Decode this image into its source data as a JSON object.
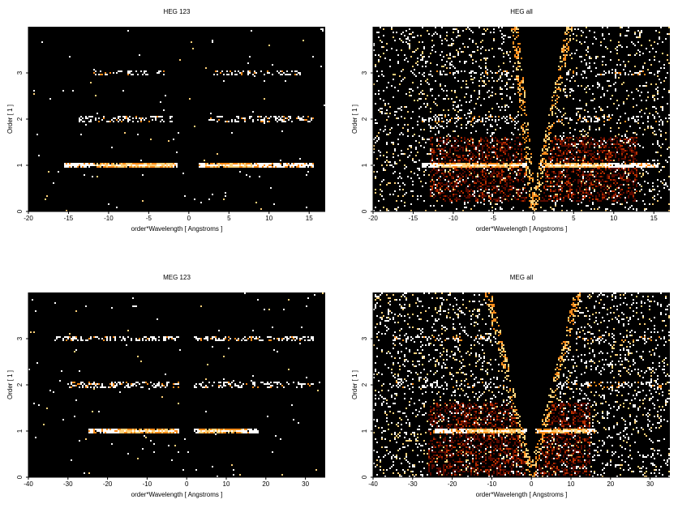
{
  "chart_data": [
    {
      "type": "heatmap",
      "title": "HEG 123",
      "xlabel": "order*Wavelength [ Angstroms ]",
      "ylabel": "Order [ 1 ]",
      "xlim": [
        -20,
        17
      ],
      "ylim": [
        0,
        4
      ],
      "xticks": [
        "-20",
        "-15",
        "-10",
        "-5",
        "0",
        "5",
        "10",
        "15"
      ],
      "yticks": [
        "0",
        "1",
        "2",
        "3"
      ],
      "colormap": [
        "#000000",
        "#5a0a00",
        "#b82e00",
        "#ff8c1a",
        "#ffd27a",
        "#ffffff"
      ],
      "bands": [
        {
          "order": 1,
          "x_ranges": [
            [
              -15.5,
              -1.5
            ],
            [
              1.2,
              15.5
            ]
          ],
          "peak_ranges": [
            [
              -12,
              -2
            ],
            [
              2,
              8
            ]
          ],
          "density": 0.9
        },
        {
          "order": 2,
          "x_ranges": [
            [
              -14,
              -2
            ],
            [
              2.5,
              15.5
            ]
          ],
          "density": 0.35
        },
        {
          "order": 3,
          "x_ranges": [
            [
              -12,
              -3
            ],
            [
              3,
              14
            ]
          ],
          "density": 0.3
        }
      ],
      "background_density": 0.005,
      "wedge": false
    },
    {
      "type": "heatmap",
      "title": "HEG all",
      "xlabel": "order*Wavelength [ Angstroms ]",
      "ylabel": "Order [ 1 ]",
      "xlim": [
        -20,
        17
      ],
      "ylim": [
        0,
        4
      ],
      "xticks": [
        "-20",
        "-15",
        "-10",
        "-5",
        "0",
        "5",
        "10",
        "15"
      ],
      "yticks": [
        "0",
        "1",
        "2",
        "3"
      ],
      "colormap": [
        "#000000",
        "#5a0a00",
        "#b82e00",
        "#ff8c1a",
        "#ffd27a",
        "#ffffff"
      ],
      "bands": [
        {
          "order": 1,
          "x_ranges": [
            [
              -14,
              -0.8
            ],
            [
              0.8,
              15.5
            ]
          ],
          "peak_ranges": [
            [
              -12,
              -1.5
            ],
            [
              1.5,
              9
            ]
          ],
          "density": 0.9
        },
        {
          "order": 2,
          "x_ranges": [
            [
              -14,
              -1
            ],
            [
              1,
              16
            ]
          ],
          "density": 0.3
        },
        {
          "order": 3,
          "x_ranges": [
            [
              -14,
              -1
            ],
            [
              1,
              16
            ]
          ],
          "density": 0.25
        }
      ],
      "background_density": 0.1,
      "wedge": true,
      "wedge_slope_left": -2.6,
      "wedge_slope_right": 5.0,
      "warm_box": [
        [
          -13,
          13
        ],
        [
          0.2,
          1.6
        ]
      ]
    },
    {
      "type": "heatmap",
      "title": "MEG 123",
      "xlabel": "order*Wavelength [ Angstroms ]",
      "ylabel": "Order [ 1 ]",
      "xlim": [
        -40,
        35
      ],
      "ylim": [
        0,
        4
      ],
      "xticks": [
        "-40",
        "-30",
        "-20",
        "-10",
        "0",
        "10",
        "20",
        "30"
      ],
      "yticks": [
        "0",
        "1",
        "2",
        "3"
      ],
      "colormap": [
        "#000000",
        "#5a0a00",
        "#b82e00",
        "#ff8c1a",
        "#ffd27a",
        "#ffffff"
      ],
      "bands": [
        {
          "order": 1,
          "x_ranges": [
            [
              -25,
              -2
            ],
            [
              2,
              18
            ]
          ],
          "peak_ranges": [
            [
              -17,
              -3
            ],
            [
              3,
              14
            ]
          ],
          "density": 0.9
        },
        {
          "order": 2,
          "x_ranges": [
            [
              -30,
              -2
            ],
            [
              2,
              32
            ]
          ],
          "density": 0.35
        },
        {
          "order": 3,
          "x_ranges": [
            [
              -34,
              -2
            ],
            [
              2,
              32
            ]
          ],
          "density": 0.4
        }
      ],
      "background_density": 0.005,
      "wedge": false
    },
    {
      "type": "heatmap",
      "title": "MEG all",
      "xlabel": "order*Wavelength [ Angstroms ]",
      "ylabel": "Order [ 1 ]",
      "xlim": [
        -40,
        35
      ],
      "ylim": [
        0,
        4
      ],
      "xticks": [
        "-40",
        "-30",
        "-20",
        "-10",
        "0",
        "10",
        "20",
        "30"
      ],
      "yticks": [
        "0",
        "1",
        "2",
        "3"
      ],
      "colormap": [
        "#000000",
        "#5a0a00",
        "#b82e00",
        "#ff8c1a",
        "#ffd27a",
        "#ffffff"
      ],
      "bands": [
        {
          "order": 1,
          "x_ranges": [
            [
              -25,
              -1
            ],
            [
              1,
              16
            ]
          ],
          "peak_ranges": [
            [
              -16,
              -2
            ],
            [
              2,
              14
            ]
          ],
          "density": 0.9
        },
        {
          "order": 2,
          "x_ranges": [
            [
              -35,
              -1
            ],
            [
              1,
              33
            ]
          ],
          "density": 0.3
        },
        {
          "order": 3,
          "x_ranges": [
            [
              -35,
              -1
            ],
            [
              1,
              33
            ]
          ],
          "density": 0.3
        }
      ],
      "background_density": 0.12,
      "wedge": true,
      "wedge_slope_left": -6.0,
      "wedge_slope_right": 6.5,
      "warm_box": [
        [
          -26,
          15
        ],
        [
          0.05,
          1.6
        ]
      ]
    }
  ]
}
